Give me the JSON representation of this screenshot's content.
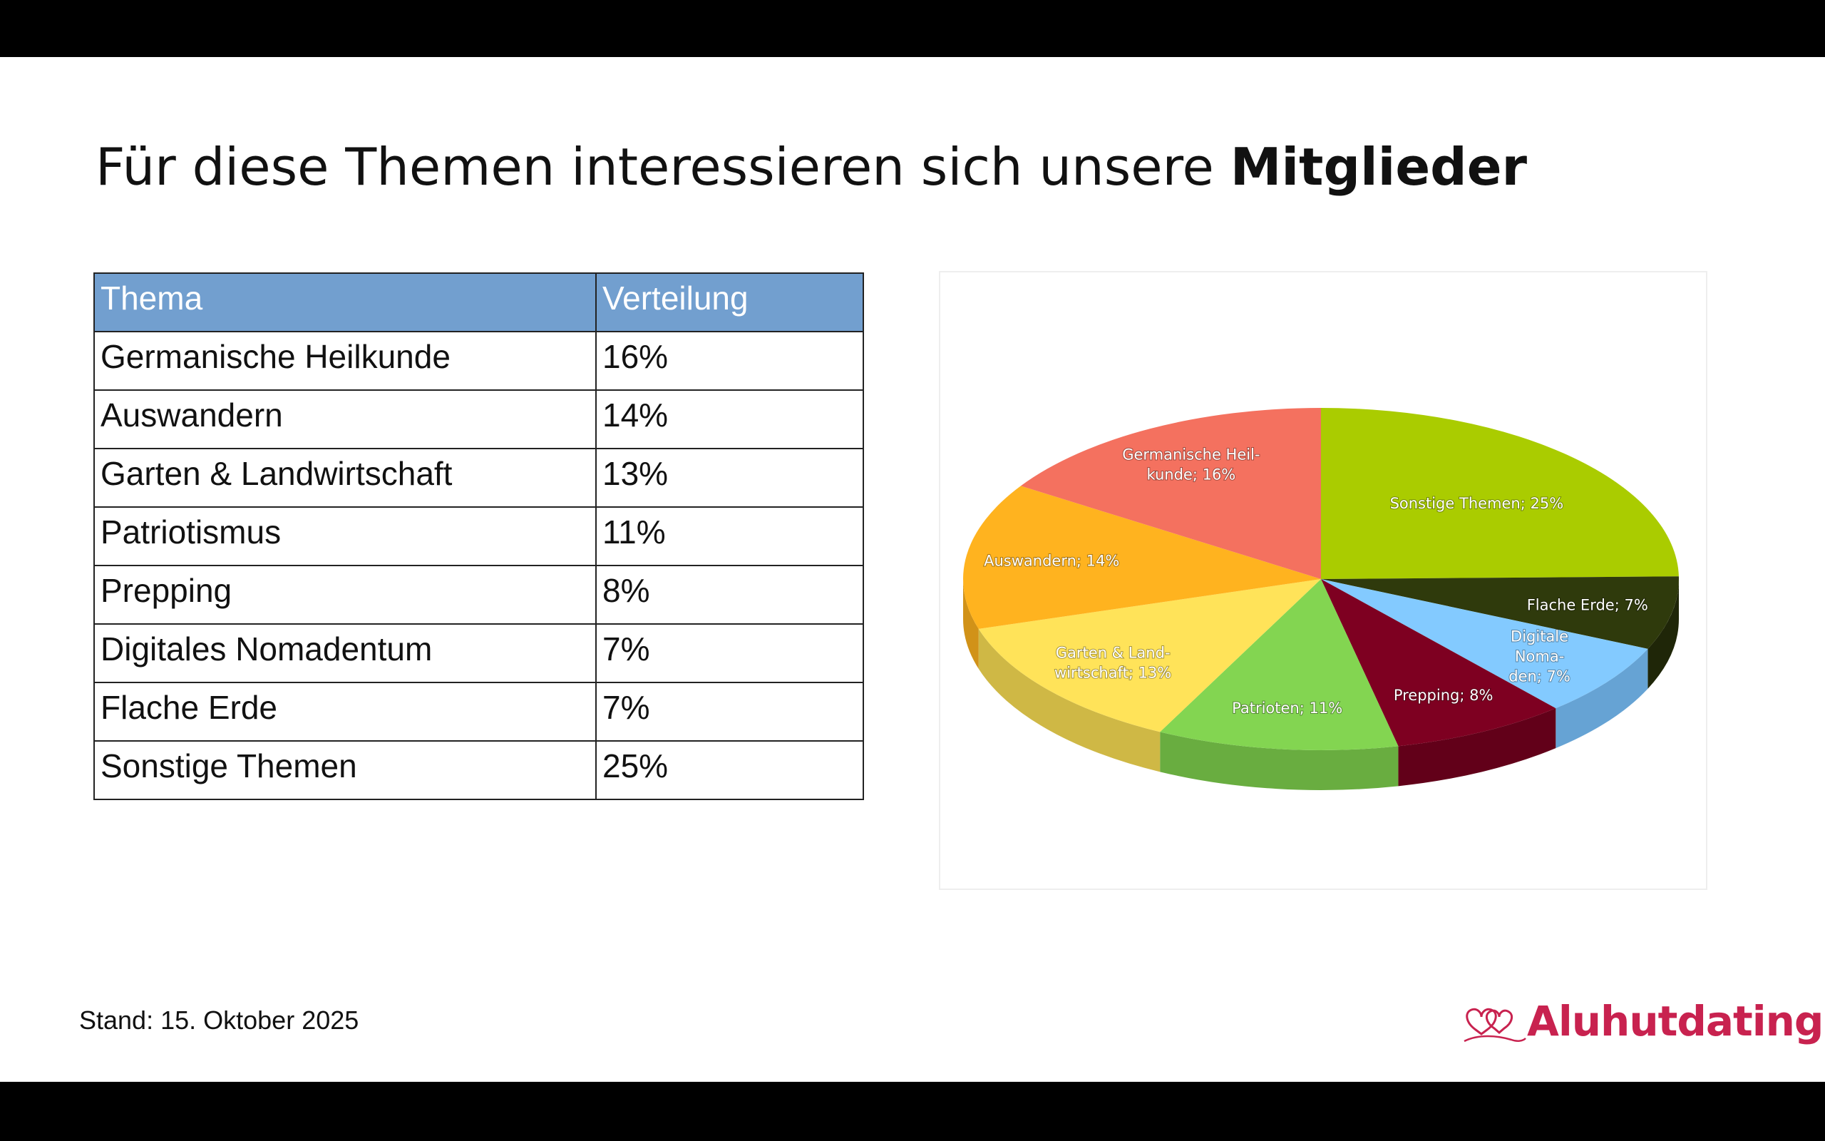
{
  "slide": {
    "title_regular": "Für diese Themen interessieren sich unsere ",
    "title_bold": "Mitglieder",
    "footer": "Stand: 15. Oktober 2025",
    "logo_text": "Aluhutdating"
  },
  "table": {
    "headers": [
      "Thema",
      "Verteilung"
    ],
    "rows": [
      [
        "Germanische Heilkunde",
        "16%"
      ],
      [
        "Auswandern",
        "14%"
      ],
      [
        "Garten & Landwirtschaft",
        "13%"
      ],
      [
        "Patriotismus",
        "11%"
      ],
      [
        "Prepping",
        "8%"
      ],
      [
        "Digitales Nomadentum",
        "7%"
      ],
      [
        "Flache Erde",
        "7%"
      ],
      [
        "Sonstige Themen",
        "25%"
      ]
    ]
  },
  "colors": {
    "header": "#729fcf",
    "logo": "#c8224f"
  },
  "chart_data": {
    "type": "pie",
    "style": "3d",
    "title": "",
    "slices": [
      {
        "label": [
          "Sonstige Themen; 25%"
        ],
        "value": 25,
        "color": "#aacc00",
        "side": "#8ba600"
      },
      {
        "label": [
          "Flache Erde; 7%"
        ],
        "value": 7,
        "color": "#2f3a0c",
        "side": "#1f2608"
      },
      {
        "label": [
          "Digitale",
          "Noma-",
          "den; 7%"
        ],
        "value": 7,
        "color": "#83caff",
        "side": "#66a3d4"
      },
      {
        "label": [
          "Prepping; 8%"
        ],
        "value": 8,
        "color": "#7e0021",
        "side": "#620019"
      },
      {
        "label": [
          "Patrioten; 11%"
        ],
        "value": 11,
        "color": "#83d551",
        "side": "#69ad40"
      },
      {
        "label": [
          "Garten & Land-",
          "wirtschaft; 13%"
        ],
        "value": 13,
        "color": "#ffe359",
        "side": "#cfb845"
      },
      {
        "label": [
          "Auswandern; 14%"
        ],
        "value": 14,
        "color": "#ffb31f",
        "side": "#d19218"
      },
      {
        "label": [
          "Germanische Heil-",
          "kunde; 16%"
        ],
        "value": 16,
        "color": "#f4715f",
        "side": "#c95c4d"
      }
    ]
  }
}
